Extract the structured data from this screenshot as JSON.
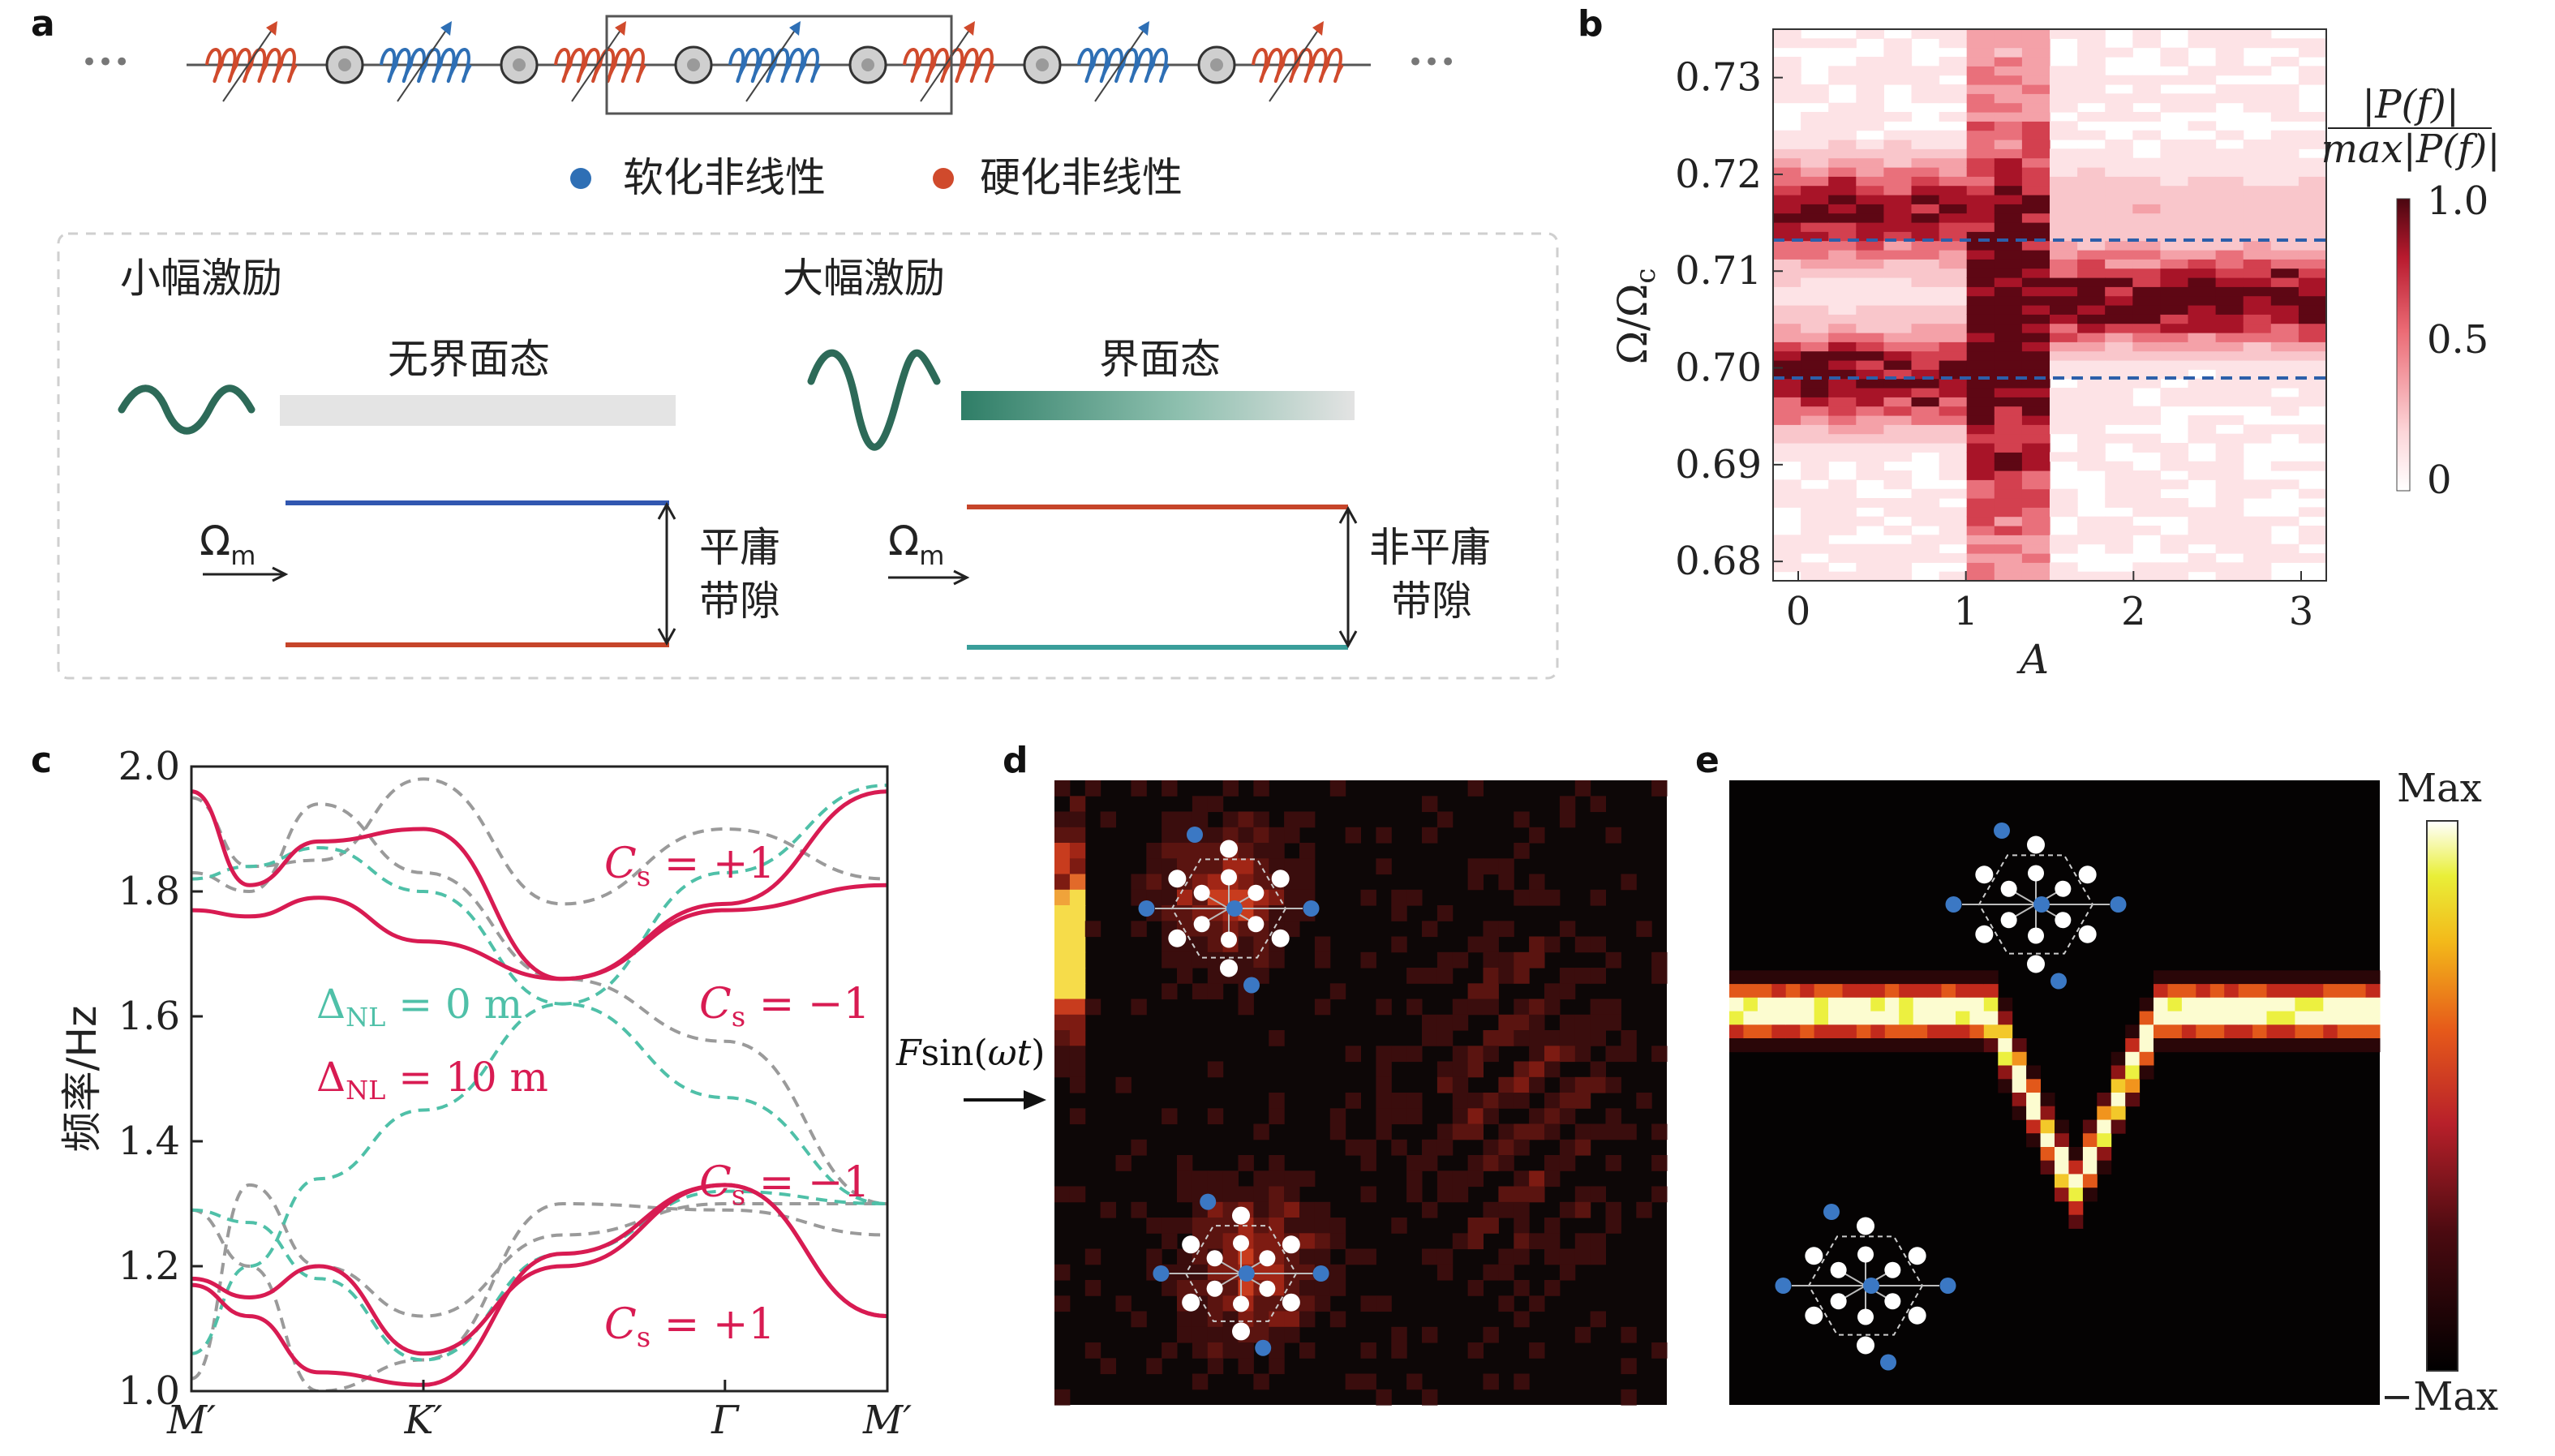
{
  "panel_a": {
    "label": "a",
    "ellipsis_left": "•••",
    "ellipsis_right": "•••",
    "legend_soft": "软化非线性",
    "legend_hard": "硬化非线性",
    "small_title": "小幅激励",
    "large_title": "大幅激励",
    "no_interface": "无界面态",
    "interface": "界面态",
    "omega_m": "Ω",
    "omega_m_sub": "m",
    "flat_gap_1": "平庸",
    "flat_gap_2": "带隙",
    "nonflat_gap_1": "非平庸",
    "nonflat_gap_2": "带隙",
    "colors": {
      "soft": "#2e6fb5",
      "hard": "#d04a2c",
      "wave": "#2d6a58"
    }
  },
  "panel_b": {
    "label": "b",
    "ylabel": "Ω/Ω",
    "ylabel_sub": "c",
    "xlabel": "A",
    "yticks": [
      "0.73",
      "0.72",
      "0.71",
      "0.70",
      "0.69",
      "0.68"
    ],
    "xticks": [
      "0",
      "1",
      "2",
      "3"
    ],
    "cbar_num": "|P(f)|",
    "cbar_den": "max|P(f)|",
    "cbar_ticks": [
      "1.0",
      "0.5",
      "0"
    ],
    "dashed_levels": [
      0.7143,
      0.7
    ],
    "ylim": [
      0.678,
      0.735
    ],
    "xlim": [
      -0.15,
      3.15
    ]
  },
  "chart_data": {
    "type": "line",
    "title": "",
    "xlabel": "",
    "ylabel": "频率/Hz",
    "ylim": [
      1.0,
      2.0
    ],
    "x_ticks": [
      "M′",
      "K′",
      "Γ",
      "M′"
    ],
    "y_ticks": [
      "2.0",
      "1.8",
      "1.6",
      "1.4",
      "1.2",
      "1.0"
    ],
    "legend": [
      "ΔNL = 0 m",
      "ΔNL = 10 m"
    ],
    "annotations": [
      "Cs = +1",
      "Cs = −1",
      "Cs = −1",
      "Cs = +1"
    ],
    "series": [
      {
        "name": "ΔNL = 0 m",
        "color": "#4fc0a8",
        "style": "dashed",
        "bands": [
          [
            1.29,
            1.27,
            1.18,
            1.05,
            1.22,
            1.32,
            1.3
          ],
          [
            1.06,
            1.2,
            1.34,
            1.45,
            1.62,
            1.83,
            1.97
          ],
          [
            1.82,
            1.84,
            1.87,
            1.8,
            1.62,
            1.47,
            1.3
          ]
        ]
      },
      {
        "name": "ΔNL = 10 m",
        "color": "#d81b52",
        "style": "solid",
        "bands": [
          [
            1.17,
            1.12,
            1.03,
            1.01,
            1.22,
            1.33,
            1.12
          ],
          [
            1.18,
            1.15,
            1.2,
            1.06,
            1.2,
            1.33,
            1.12
          ],
          [
            1.77,
            1.76,
            1.79,
            1.72,
            1.66,
            1.77,
            1.81
          ],
          [
            1.96,
            1.81,
            1.88,
            1.9,
            1.66,
            1.78,
            1.96
          ]
        ]
      }
    ],
    "x": [
      0,
      0.25,
      0.55,
      1.0,
      1.6,
      2.3,
      3.0
    ]
  },
  "panel_c": {
    "label": "c",
    "cs1": "C",
    "cs_sub": "s",
    "cs_pos": " = +1",
    "cs_neg": " = −1",
    "dnl0": " = 0 m",
    "dnl10": " = 10 m",
    "delta": "Δ",
    "delta_sub": "NL"
  },
  "panel_d": {
    "label": "d",
    "force": "F",
    "force_rest": "sin(",
    "omega_t": "ωt",
    "close": ")"
  },
  "panel_e": {
    "label": "e",
    "cbar_max": "Max",
    "cbar_min": "−Max"
  }
}
